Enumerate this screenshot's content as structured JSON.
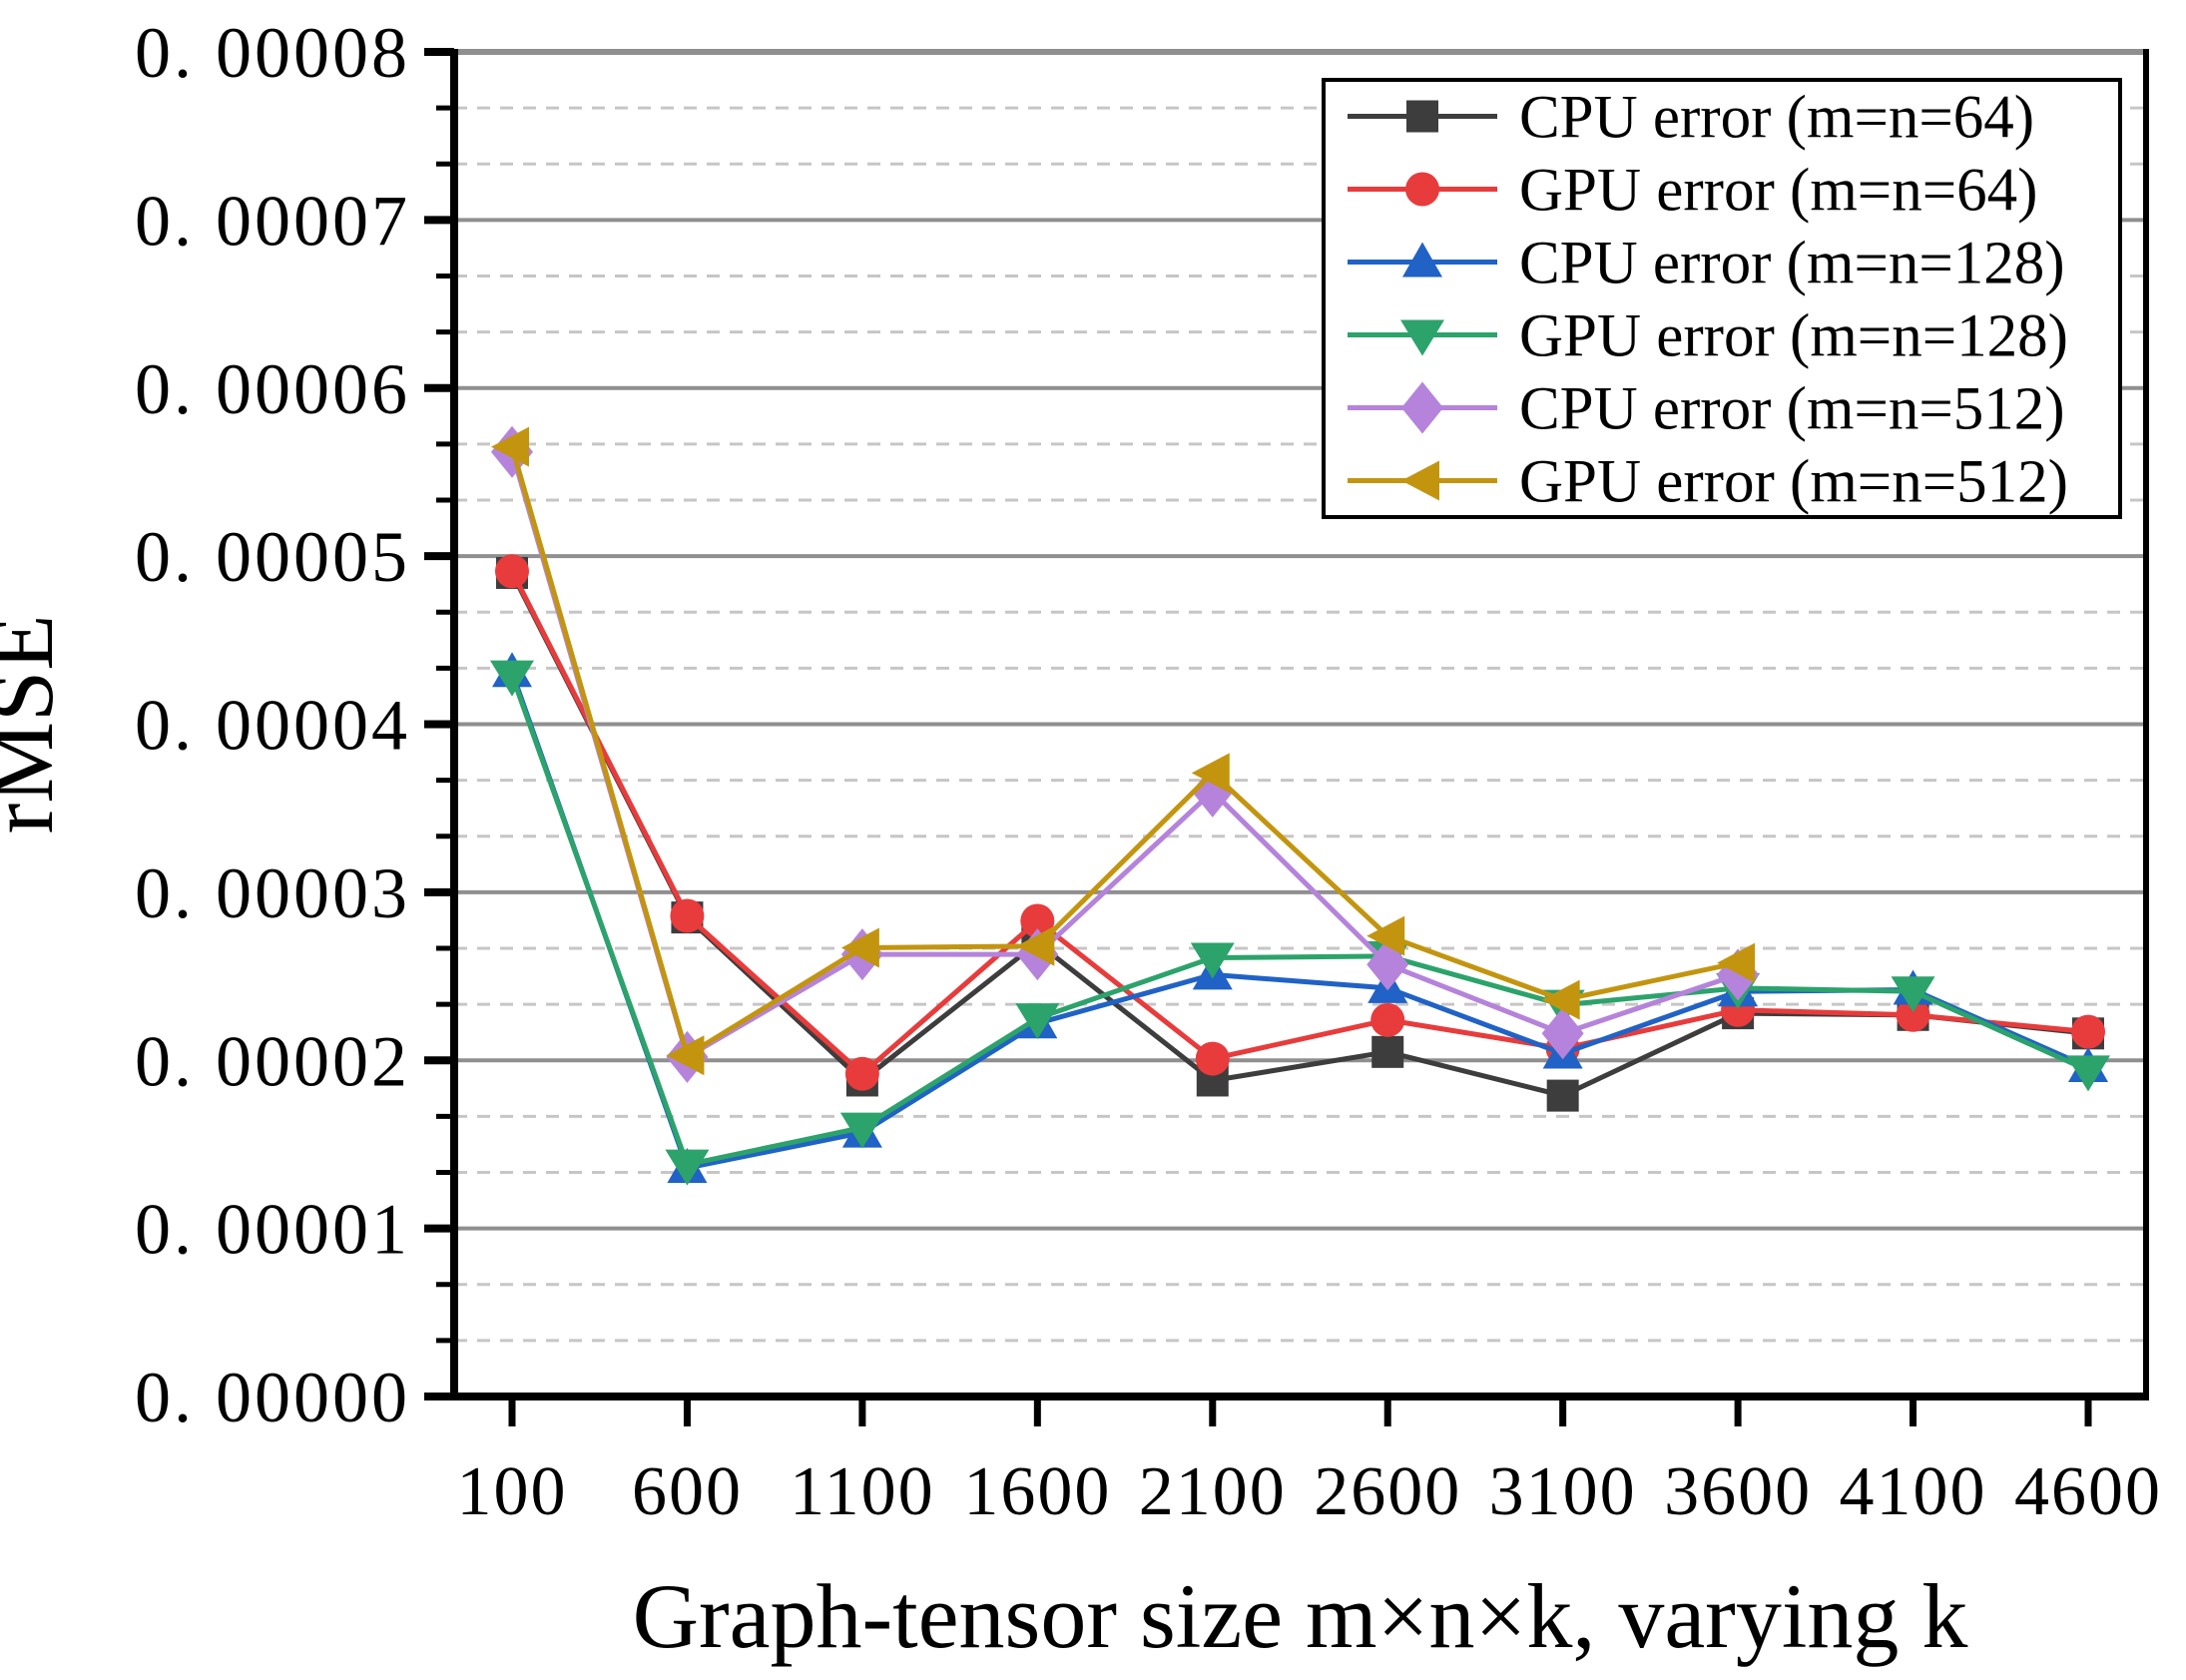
{
  "chart_data": {
    "type": "line",
    "title": "",
    "xlabel": "Graph-tensor size m×n×k, varying k",
    "ylabel": "rMSE",
    "x": [
      100,
      600,
      1100,
      1600,
      2100,
      2600,
      3100,
      3600,
      4100,
      4600
    ],
    "x_tick_labels": [
      "100",
      "600",
      "1100",
      "1600",
      "2100",
      "2600",
      "3100",
      "3600",
      "4100",
      "4600"
    ],
    "y_tick_labels": [
      "0. 00000",
      "0. 00001",
      "0. 00002",
      "0. 00003",
      "0. 00004",
      "0. 00005",
      "0. 00006",
      "0. 00007",
      "0. 00008"
    ],
    "ylim": [
      0,
      8e-05
    ],
    "y_major_step": 1e-05,
    "y_minor_per_major": 3,
    "grid": {
      "major": true,
      "minor": true,
      "major_color": "#8f8f8f",
      "minor_color": "#c6c6c6"
    },
    "legend_position": "top-right",
    "series": [
      {
        "name": "CPU error (m=n=64)",
        "marker": "square",
        "color": "#3d3d3d",
        "values": [
          4.9e-05,
          2.85e-05,
          1.88e-05,
          2.7e-05,
          1.88e-05,
          2.05e-05,
          1.79e-05,
          2.28e-05,
          2.27e-05,
          2.16e-05
        ]
      },
      {
        "name": "GPU error (m=n=64)",
        "marker": "circle",
        "color": "#e83b3b",
        "values": [
          4.91e-05,
          2.86e-05,
          1.92e-05,
          2.83e-05,
          2.01e-05,
          2.24e-05,
          2.07e-05,
          2.3e-05,
          2.27e-05,
          2.17e-05
        ]
      },
      {
        "name": "CPU error (m=n=128)",
        "marker": "triangle-up",
        "color": "#2062c6",
        "values": [
          4.31e-05,
          1.36e-05,
          1.57e-05,
          2.22e-05,
          2.51e-05,
          2.43e-05,
          2.04e-05,
          2.41e-05,
          2.42e-05,
          1.96e-05
        ]
      },
      {
        "name": "GPU error (m=n=128)",
        "marker": "triangle-down",
        "color": "#2ba36b",
        "values": [
          4.29e-05,
          1.38e-05,
          1.6e-05,
          2.25e-05,
          2.61e-05,
          2.62e-05,
          2.33e-05,
          2.43e-05,
          2.41e-05,
          1.94e-05
        ]
      },
      {
        "name": "CPU error (m=n=512)",
        "marker": "diamond",
        "color": "#b583db",
        "values": [
          5.62e-05,
          2.02e-05,
          2.63e-05,
          2.63e-05,
          3.6e-05,
          2.57e-05,
          2.16e-05,
          2.51e-05
        ]
      },
      {
        "name": "GPU error (m=n=512)",
        "marker": "triangle-left",
        "color": "#c3950f",
        "values": [
          5.65e-05,
          2.03e-05,
          2.67e-05,
          2.68e-05,
          3.71e-05,
          2.74e-05,
          2.36e-05,
          2.58e-05
        ]
      }
    ]
  },
  "style_colors": {
    "axis_spine": "#000000",
    "top_spine": "#8f8f8f",
    "major_grid": "#8f8f8f",
    "minor_grid": "#c6c6c6",
    "legend_border": "#000000",
    "background": "#ffffff"
  }
}
